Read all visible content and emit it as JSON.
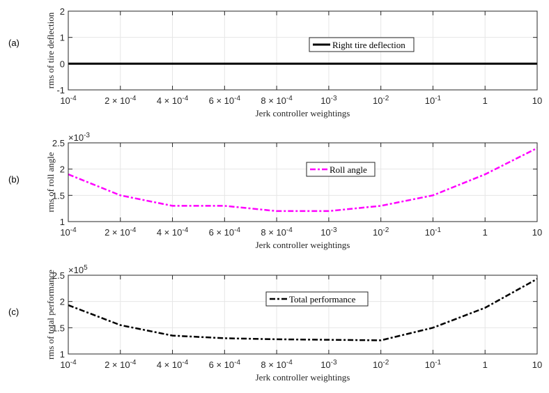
{
  "chart_data": [
    {
      "type": "line",
      "panel_label": "(a)",
      "title": "",
      "xlabel": "Jerk controller weightings",
      "ylabel": "rms of tire deflection",
      "x_tick_labels": [
        "10^-4",
        "2×10^-4",
        "4×10^-4",
        "6×10^-4",
        "8×10^-4",
        "10^-3",
        "10^-2",
        "10^-1",
        "1",
        "10"
      ],
      "categories": [
        "1e-4",
        "2e-4",
        "4e-4",
        "6e-4",
        "8e-4",
        "1e-3",
        "1e-2",
        "1e-1",
        "1",
        "10"
      ],
      "ylim": [
        -1,
        2
      ],
      "y_ticks": [
        "-1",
        "0",
        "1",
        "2"
      ],
      "y_exponent": "",
      "grid": true,
      "series": [
        {
          "name": "Right tire deflection",
          "color": "#000000",
          "style": "solid",
          "values": [
            0,
            0,
            0,
            0,
            0,
            0,
            0,
            0,
            0,
            0
          ]
        }
      ],
      "legend_position": "center"
    },
    {
      "type": "line",
      "panel_label": "(b)",
      "title": "",
      "xlabel": "Jerk controller weightings",
      "ylabel": "rms of roll angle",
      "x_tick_labels": [
        "10^-4",
        "2×10^-4",
        "4×10^-4",
        "6×10^-4",
        "8×10^-4",
        "10^-3",
        "10^-2",
        "10^-1",
        "1",
        "10"
      ],
      "categories": [
        "1e-4",
        "2e-4",
        "4e-4",
        "6e-4",
        "8e-4",
        "1e-3",
        "1e-2",
        "1e-1",
        "1",
        "10"
      ],
      "ylim": [
        1,
        2.5
      ],
      "y_ticks": [
        "1",
        "1.5",
        "2",
        "2.5"
      ],
      "y_exponent": "×10^-3",
      "grid": true,
      "series": [
        {
          "name": "Roll angle",
          "color": "#ff00ff",
          "style": "dashdot",
          "values": [
            1.9,
            1.5,
            1.3,
            1.3,
            1.2,
            1.2,
            1.3,
            1.5,
            1.9,
            2.4
          ]
        }
      ],
      "legend_position": "center"
    },
    {
      "type": "line",
      "panel_label": "(c)",
      "title": "",
      "xlabel": "Jerk controller weightings",
      "ylabel": "rms of total performance",
      "x_tick_labels": [
        "10^-4",
        "2×10^-4",
        "4×10^-4",
        "6×10^-4",
        "8×10^-4",
        "10^-3",
        "10^-2",
        "10^-1",
        "1",
        "10"
      ],
      "categories": [
        "1e-4",
        "2e-4",
        "4e-4",
        "6e-4",
        "8e-4",
        "1e-3",
        "1e-2",
        "1e-1",
        "1",
        "10"
      ],
      "ylim": [
        1,
        2.5
      ],
      "y_ticks": [
        "1",
        "1.5",
        "2",
        "2.5"
      ],
      "y_exponent": "×10^5",
      "grid": true,
      "series": [
        {
          "name": "Total performance",
          "color": "#000000",
          "style": "dashdot",
          "values": [
            1.93,
            1.55,
            1.35,
            1.3,
            1.28,
            1.27,
            1.26,
            1.5,
            1.88,
            2.43
          ]
        }
      ],
      "legend_position": "center"
    }
  ]
}
